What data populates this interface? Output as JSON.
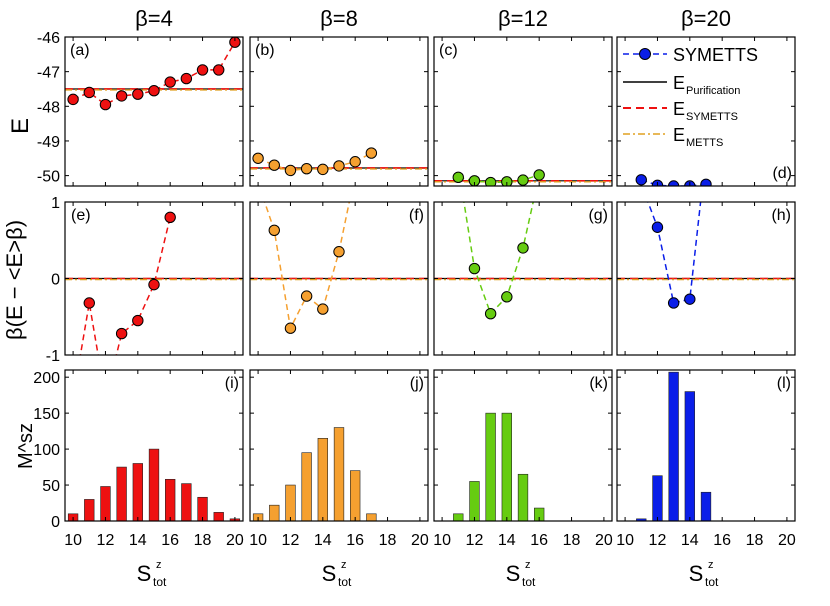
{
  "figure": {
    "col_titles": [
      "β=4",
      "β=8",
      "β=12",
      "β=20"
    ],
    "col_colors": [
      "#ee1111",
      "#f5a030",
      "#66cc11",
      "#0a1ee8"
    ],
    "row_ylabels": [
      "E",
      "β(E − <E>β)",
      "M^sz"
    ],
    "xlabel": "S^z_tot",
    "panel_labels": [
      "(a)",
      "(b)",
      "(c)",
      "(d)",
      "(e)",
      "(f)",
      "(g)",
      "(h)",
      "(i)",
      "(j)",
      "(k)",
      "(l)"
    ],
    "legend": [
      {
        "label": "SYMETTS",
        "sub": ""
      },
      {
        "label": "E",
        "sub": "Purification"
      },
      {
        "label": "E",
        "sub": "SYMETTS"
      },
      {
        "label": "E",
        "sub": "METTS"
      }
    ]
  },
  "chart_data": [
    {
      "type": "scatter",
      "row": "energy",
      "ylabel": "E",
      "xlim": [
        9.5,
        20.5
      ],
      "ylim": [
        -50.3,
        -46
      ],
      "yticks": [
        -46,
        -47,
        -48,
        -49,
        -50
      ],
      "columns": [
        {
          "beta": 4,
          "x": [
            10,
            11,
            12,
            13,
            14,
            15,
            16,
            17,
            18,
            19,
            20
          ],
          "y": [
            -47.8,
            -47.6,
            -47.95,
            -47.7,
            -47.65,
            -47.55,
            -47.3,
            -47.2,
            -46.95,
            -46.95,
            -46.15
          ],
          "reference": -47.5
        },
        {
          "beta": 8,
          "x": [
            10,
            11,
            12,
            13,
            14,
            15,
            16,
            17
          ],
          "y": [
            -49.5,
            -49.7,
            -49.85,
            -49.8,
            -49.82,
            -49.72,
            -49.6,
            -49.35
          ],
          "reference": -49.78
        },
        {
          "beta": 12,
          "x": [
            11,
            12,
            13,
            14,
            15,
            16
          ],
          "y": [
            -50.05,
            -50.15,
            -50.2,
            -50.18,
            -50.13,
            -49.98
          ],
          "reference": -50.15
        },
        {
          "beta": 20,
          "x": [
            11,
            12,
            13,
            14,
            15
          ],
          "y": [
            -50.12,
            -50.28,
            -50.3,
            -50.3,
            -50.25
          ],
          "reference": -50.33
        }
      ]
    },
    {
      "type": "scatter",
      "row": "deviation",
      "ylabel": "β(E − <E>β)",
      "xlim": [
        9.5,
        20.5
      ],
      "ylim": [
        -1,
        1
      ],
      "yticks": [
        1,
        0,
        -1
      ],
      "columns": [
        {
          "beta": 4,
          "x": [
            11,
            13,
            14,
            15,
            16
          ],
          "y": [
            -0.32,
            -0.72,
            -0.55,
            -0.08,
            0.8
          ]
        },
        {
          "beta": 8,
          "x": [
            11,
            12,
            13,
            14,
            15
          ],
          "y": [
            0.63,
            -0.65,
            -0.23,
            -0.4,
            0.35
          ]
        },
        {
          "beta": 12,
          "x": [
            12,
            13,
            14,
            15
          ],
          "y": [
            0.13,
            -0.46,
            -0.24,
            0.4
          ]
        },
        {
          "beta": 20,
          "x": [
            12,
            13,
            14
          ],
          "y": [
            0.67,
            -0.32,
            -0.27
          ]
        }
      ]
    },
    {
      "type": "bar",
      "row": "histogram",
      "ylabel": "M^sz",
      "xlim": [
        9.5,
        20.5
      ],
      "ylim": [
        0,
        210
      ],
      "yticks": [
        0,
        50,
        100,
        150,
        200
      ],
      "xticks": [
        10,
        12,
        14,
        16,
        18,
        20
      ],
      "columns": [
        {
          "beta": 4,
          "x": [
            10,
            11,
            12,
            13,
            14,
            15,
            16,
            17,
            18,
            19,
            20
          ],
          "values": [
            10,
            30,
            48,
            75,
            80,
            100,
            58,
            52,
            33,
            12,
            3
          ]
        },
        {
          "beta": 8,
          "x": [
            10,
            11,
            12,
            13,
            14,
            15,
            16,
            17
          ],
          "values": [
            10,
            22,
            50,
            95,
            115,
            130,
            70,
            10
          ]
        },
        {
          "beta": 12,
          "x": [
            11,
            12,
            13,
            14,
            15,
            16
          ],
          "values": [
            10,
            55,
            150,
            150,
            65,
            18
          ]
        },
        {
          "beta": 20,
          "x": [
            11,
            12,
            13,
            14,
            15
          ],
          "values": [
            3,
            63,
            207,
            180,
            40
          ]
        }
      ]
    }
  ]
}
